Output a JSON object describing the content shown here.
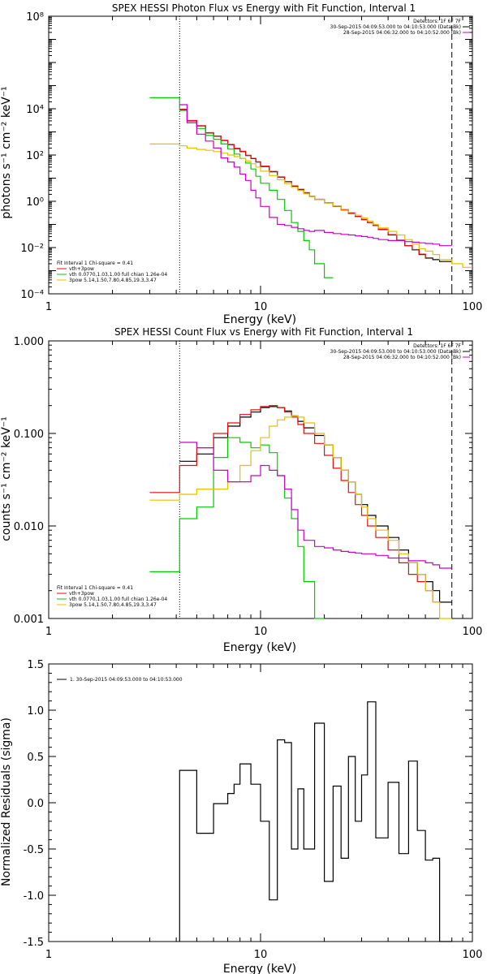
{
  "chart_data": [
    {
      "type": "line",
      "title": "SPEX HESSI Photon Flux vs Energy with Fit Function, Interval 1",
      "xlabel": "Energy (keV)",
      "ylabel": "photons s⁻¹ cm⁻² keV⁻¹",
      "xscale": "log",
      "yscale": "log",
      "xlim": [
        1,
        100
      ],
      "ylim": [
        0.0001,
        100000000
      ],
      "xticks": [
        {
          "v": 1,
          "t": "1"
        },
        {
          "v": 10,
          "t": "10"
        },
        {
          "v": 100,
          "t": "100"
        }
      ],
      "yticks": [
        {
          "v": 0.0001,
          "t": "10⁻⁴"
        },
        {
          "v": 0.01,
          "t": "10⁻²"
        },
        {
          "v": 1,
          "t": "10⁰"
        },
        {
          "v": 100,
          "t": "10²"
        },
        {
          "v": 10000,
          "t": "10⁴"
        },
        {
          "v": 100000000,
          "t": "10⁸"
        }
      ],
      "vlines": [
        {
          "x": 4.15,
          "style": "dotted",
          "color": "#000000"
        },
        {
          "x": 80,
          "style": "dashed",
          "color": "#000000"
        }
      ],
      "legend_top": [
        "Detectors: 1F 6F 7F",
        "30-Sep-2015 04:09:53.000 to 04:10:53.000 (Data-Bk)",
        "28-Sep-2015 04:06:32.000 to 04:10:52.000 (Bk)"
      ],
      "legend_top_colors": [
        "#000000",
        "#000000",
        "#cc00cc"
      ],
      "legend_bottom": [
        "Fit Interval 1   Chi-square = 0.41",
        "vth+3pow",
        "vth 0.0770,1.03,1.00  full chian 1.26e-04",
        "3pow 5.14,1.50,7.80,4.85,19.3,3.47"
      ],
      "legend_bottom_colors": [
        "#000000",
        "#e01010",
        "#00cc00",
        "#e8c000"
      ],
      "edges": [
        3.0,
        4.15,
        4.5,
        5.0,
        5.5,
        6.0,
        6.5,
        7.0,
        7.5,
        8.0,
        8.5,
        9.0,
        9.5,
        10.0,
        11.0,
        12.0,
        13.0,
        14.0,
        15.0,
        16.0,
        17.0,
        18.0,
        20.0,
        22.0,
        24.0,
        26.0,
        28.0,
        30.0,
        32.0,
        34.0,
        36.0,
        40.0,
        44.0,
        48.0,
        52.0,
        56.0,
        60.0,
        65.0,
        70.0,
        80.0,
        90.0,
        100.0
      ],
      "series": [
        {
          "color": "#000000",
          "start": 1,
          "values": [
            9000,
            3000,
            1800,
            900,
            650,
            420,
            280,
            190,
            140,
            95,
            70,
            50,
            32,
            19,
            11,
            7,
            4.5,
            3.2,
            2.3,
            1.6,
            1.2,
            0.85,
            0.6,
            0.42,
            0.3,
            0.22,
            0.16,
            0.12,
            0.09,
            0.06,
            0.035,
            0.02,
            0.012,
            0.008,
            0.005,
            0.0035,
            0.003,
            0.0025
          ]
        },
        {
          "color": "#e01010",
          "start": 1,
          "values": [
            9500,
            3100,
            1850,
            920,
            660,
            430,
            285,
            195,
            145,
            97,
            72,
            51,
            33,
            19.5,
            11.3,
            7.2,
            4.6,
            3.3,
            2.35,
            1.65,
            1.22,
            0.87,
            0.62,
            0.43,
            0.31,
            0.22,
            0.165,
            0.12,
            0.09,
            0.062,
            0.036,
            0.021,
            0.012,
            0.0082,
            0.0052,
            0.0036
          ]
        },
        {
          "color": "#00cc00",
          "start": 0,
          "values": [
            30000,
            8500,
            2500,
            1400,
            700,
            480,
            300,
            180,
            110,
            70,
            45,
            25,
            12,
            6,
            3,
            1.2,
            0.4,
            0.12,
            0.05,
            0.02,
            0.008,
            0.002,
            0.0005
          ]
        },
        {
          "color": "#e8c000",
          "start": 0,
          "values": [
            300,
            250,
            200,
            175,
            160,
            140,
            120,
            100,
            85,
            70,
            55,
            42,
            30,
            20,
            13,
            8.5,
            5.8,
            4,
            2.9,
            2.1,
            1.6,
            1.2,
            0.85,
            0.62,
            0.45,
            0.33,
            0.25,
            0.19,
            0.14,
            0.1,
            0.07,
            0.05,
            0.035,
            0.022,
            0.014,
            0.009,
            0.007,
            0.005,
            0.003,
            0.002,
            0.0014
          ]
        },
        {
          "color": "#cc00cc",
          "start": 1,
          "values": [
            15000,
            2500,
            800,
            400,
            200,
            75,
            50,
            30,
            15,
            8,
            3,
            1.4,
            0.6,
            0.2,
            0.1,
            0.09,
            0.075,
            0.065,
            0.055,
            0.05,
            0.055,
            0.045,
            0.04,
            0.037,
            0.035,
            0.032,
            0.03,
            0.028,
            0.025,
            0.022,
            0.02,
            0.02,
            0.018,
            0.017,
            0.016,
            0.015,
            0.014,
            0.012
          ]
        }
      ]
    },
    {
      "type": "line",
      "title": "SPEX HESSI Count Flux vs Energy with Fit Function, Interval 1",
      "xlabel": "Energy (keV)",
      "ylabel": "counts s⁻¹ cm⁻² keV⁻¹",
      "xscale": "log",
      "yscale": "log",
      "xlim": [
        1,
        100
      ],
      "ylim": [
        0.001,
        1
      ],
      "xticks": [
        {
          "v": 1,
          "t": "1"
        },
        {
          "v": 10,
          "t": "10"
        },
        {
          "v": 100,
          "t": "100"
        }
      ],
      "yticks": [
        {
          "v": 0.001,
          "t": "0.001"
        },
        {
          "v": 0.01,
          "t": "0.010"
        },
        {
          "v": 0.1,
          "t": "0.100"
        },
        {
          "v": 1,
          "t": "1.000"
        }
      ],
      "vlines": [
        {
          "x": 4.15,
          "style": "dotted",
          "color": "#000000"
        },
        {
          "x": 80,
          "style": "dashed",
          "color": "#000000"
        }
      ],
      "legend_top": [
        "Detectors: 1F 6F 7F",
        "30-Sep-2015 04:09:53.000 to 04:10:53.000 (Data-Bk)",
        "28-Sep-2015 04:06:32.000 to 04:10:52.000 (Bk)"
      ],
      "legend_top_colors": [
        "#000000",
        "#000000",
        "#cc00cc"
      ],
      "legend_bottom": [
        "Fit Interval 1   Chi-square = 0.41",
        "vth+3pow",
        "vth 0.0770,1.03,1.00  full chian 1.26e-04",
        "3pow 5.14,1.50,7.80,4.85,19.3,3.47"
      ],
      "legend_bottom_colors": [
        "#000000",
        "#e01010",
        "#00cc00",
        "#e8c000"
      ],
      "edges": [
        3.0,
        4.15,
        5.0,
        6.0,
        7.0,
        8.0,
        9.0,
        10.0,
        11.0,
        12.0,
        13.0,
        14.0,
        15.0,
        16.0,
        18.0,
        20.0,
        22.0,
        24.0,
        26.0,
        28.0,
        30.0,
        32.0,
        35.0,
        40.0,
        45.0,
        50.0,
        55.0,
        60.0,
        65.0,
        70.0,
        80.0,
        90.0
      ],
      "series": [
        {
          "color": "#000000",
          "start": 1,
          "values": [
            0.05,
            0.06,
            0.09,
            0.12,
            0.15,
            0.17,
            0.19,
            0.195,
            0.19,
            0.175,
            0.155,
            0.135,
            0.115,
            0.095,
            0.075,
            0.055,
            0.04,
            0.03,
            0.022,
            0.017,
            0.013,
            0.01,
            0.0075,
            0.0055,
            0.004,
            0.003,
            0.0025,
            0.002,
            0.0015
          ]
        },
        {
          "color": "#e01010",
          "start": 0,
          "values": [
            0.023,
            0.045,
            0.07,
            0.1,
            0.13,
            0.16,
            0.18,
            0.195,
            0.2,
            0.19,
            0.17,
            0.15,
            0.125,
            0.1,
            0.078,
            0.058,
            0.042,
            0.031,
            0.023,
            0.017,
            0.013,
            0.01,
            0.0075,
            0.0055,
            0.004,
            0.003,
            0.0025,
            0.002,
            0.0015
          ]
        },
        {
          "color": "#00cc00",
          "start": 0,
          "values": [
            0.0032,
            0.012,
            0.016,
            0.055,
            0.09,
            0.08,
            0.07,
            0.075,
            0.062,
            0.035,
            0.02,
            0.012,
            0.006,
            0.0025,
            0.0008
          ]
        },
        {
          "color": "#e8c000",
          "start": 0,
          "values": [
            0.019,
            0.022,
            0.025,
            0.025,
            0.03,
            0.045,
            0.065,
            0.09,
            0.12,
            0.14,
            0.15,
            0.155,
            0.15,
            0.13,
            0.1,
            0.075,
            0.055,
            0.04,
            0.03,
            0.022,
            0.016,
            0.012,
            0.009,
            0.007,
            0.005,
            0.004,
            0.003,
            0.002,
            0.0015,
            0.001
          ]
        },
        {
          "color": "#cc00cc",
          "start": 1,
          "values": [
            0.08,
            0.07,
            0.04,
            0.03,
            0.03,
            0.035,
            0.045,
            0.04,
            0.035,
            0.025,
            0.015,
            0.009,
            0.007,
            0.006,
            0.0058,
            0.0055,
            0.0053,
            0.0052,
            0.0051,
            0.005,
            0.005,
            0.0048,
            0.0045,
            0.0045,
            0.0042,
            0.0042,
            0.004,
            0.0038,
            0.0035
          ]
        }
      ]
    },
    {
      "type": "line",
      "title": "",
      "xlabel": "Energy (keV)",
      "ylabel": "Normalized Residuals (sigma)",
      "xscale": "log",
      "yscale": "linear",
      "xlim": [
        1,
        100
      ],
      "ylim": [
        -1.5,
        1.5
      ],
      "xticks": [
        {
          "v": 1,
          "t": "1"
        },
        {
          "v": 10,
          "t": "10"
        },
        {
          "v": 100,
          "t": "100"
        }
      ],
      "yticks": [
        {
          "v": -1.5,
          "t": "-1.5"
        },
        {
          "v": -1.0,
          "t": "-1.0"
        },
        {
          "v": -0.5,
          "t": "-0.5"
        },
        {
          "v": 0.0,
          "t": "0.0"
        },
        {
          "v": 0.5,
          "t": "0.5"
        },
        {
          "v": 1.0,
          "t": "1.0"
        },
        {
          "v": 1.5,
          "t": "1.5"
        }
      ],
      "vlines": [],
      "legend_top": [],
      "legend_top_colors": [],
      "legend_bottom": [],
      "legend_bottom_colors": [],
      "legend_ul": "1. 30-Sep-2015 04:09:53.000 to 04:10:53.000",
      "edges": [
        4.15,
        5.0,
        6.0,
        7.0,
        7.5,
        8.0,
        9.0,
        10.0,
        11.0,
        12.0,
        13.0,
        14.0,
        15.0,
        16.0,
        18.0,
        20.0,
        22.0,
        24.0,
        26.0,
        28.0,
        30.0,
        32.0,
        35.0,
        40.0,
        45.0,
        50.0,
        55.0,
        60.0,
        65.0,
        70.0,
        80.0
      ],
      "series": [
        {
          "color": "#000000",
          "start": 0,
          "baseline_start": -1.5,
          "baseline_end": -1.5,
          "values": [
            0.35,
            -0.33,
            -0.01,
            0.1,
            0.2,
            0.42,
            0.2,
            -0.2,
            -1.05,
            0.68,
            0.65,
            -0.5,
            0.15,
            -0.5,
            0.86,
            -0.85,
            0.18,
            -0.6,
            0.5,
            -0.2,
            0.3,
            1.09,
            -0.38,
            0.22,
            -0.55,
            0.45,
            -0.3,
            -0.62,
            -0.6,
            -1.5
          ]
        }
      ]
    }
  ]
}
